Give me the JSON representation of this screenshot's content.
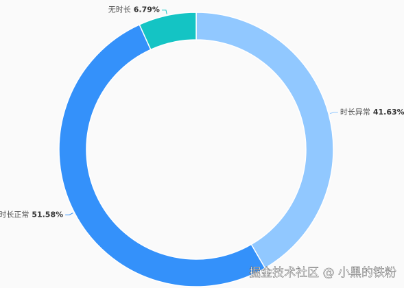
{
  "chart_data": {
    "type": "donut",
    "categories": [
      "时长异常",
      "时长正常",
      "无时长"
    ],
    "values": [
      41.63,
      51.58,
      6.79
    ],
    "value_labels": [
      "41.63%",
      "51.58%",
      "6.79%"
    ],
    "colors": [
      "#91c8ff",
      "#3491fa",
      "#14c4c4"
    ],
    "watermark": "掘金技术社区 @ 小黑的铁粉"
  }
}
